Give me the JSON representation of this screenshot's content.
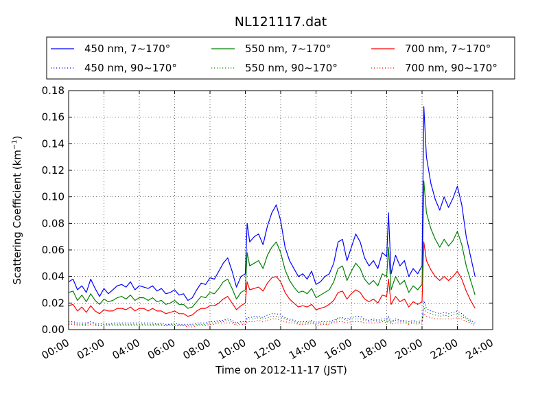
{
  "chart_data": {
    "type": "line",
    "title": "NL121117.dat",
    "xlabel": "Time on 2012-11-17 (JST)",
    "ylabel_main": "Scattering Coefficient (km",
    "ylabel_sup": "−1",
    "ylabel_close": ")",
    "xlim": [
      0,
      24
    ],
    "ylim": [
      0,
      0.18
    ],
    "grid": true,
    "legend_position": "top",
    "x_ticks": [
      0,
      2,
      4,
      6,
      8,
      10,
      12,
      14,
      16,
      18,
      20,
      22,
      24
    ],
    "x_tick_labels": [
      "00:00",
      "02:00",
      "04:00",
      "06:00",
      "08:00",
      "10:00",
      "12:00",
      "14:00",
      "16:00",
      "18:00",
      "20:00",
      "22:00",
      "24:00"
    ],
    "y_ticks": [
      0,
      0.02,
      0.04,
      0.06,
      0.08,
      0.1,
      0.12,
      0.14,
      0.16,
      0.18
    ],
    "y_tick_labels": [
      "0.00",
      "0.02",
      "0.04",
      "0.06",
      "0.08",
      "0.10",
      "0.12",
      "0.14",
      "0.16",
      "0.18"
    ],
    "x": [
      0,
      0.25,
      0.5,
      0.75,
      1,
      1.25,
      1.5,
      1.75,
      2,
      2.25,
      2.5,
      2.75,
      3,
      3.25,
      3.5,
      3.75,
      4,
      4.25,
      4.5,
      4.75,
      5,
      5.25,
      5.5,
      5.75,
      6,
      6.25,
      6.5,
      6.75,
      7,
      7.25,
      7.5,
      7.75,
      8,
      8.25,
      8.5,
      8.75,
      9,
      9.25,
      9.5,
      9.75,
      10,
      10.1,
      10.25,
      10.5,
      10.75,
      11,
      11.25,
      11.5,
      11.75,
      12,
      12.25,
      12.5,
      12.75,
      13,
      13.25,
      13.5,
      13.75,
      14,
      14.25,
      14.5,
      14.75,
      15,
      15.25,
      15.5,
      15.75,
      16,
      16.25,
      16.5,
      16.75,
      17,
      17.25,
      17.5,
      17.75,
      18,
      18.1,
      18.25,
      18.5,
      18.75,
      19,
      19.25,
      19.5,
      19.75,
      20,
      20.1,
      20.25,
      20.5,
      20.75,
      21,
      21.25,
      21.5,
      21.75,
      22,
      22.25,
      22.5,
      22.75,
      23
    ],
    "series": [
      {
        "name": "450 nm, 7∼170°",
        "color": "#0000ff",
        "dash": "solid",
        "values": [
          0.036,
          0.038,
          0.03,
          0.033,
          0.028,
          0.038,
          0.031,
          0.025,
          0.031,
          0.027,
          0.03,
          0.033,
          0.034,
          0.032,
          0.036,
          0.03,
          0.033,
          0.032,
          0.031,
          0.033,
          0.029,
          0.031,
          0.027,
          0.028,
          0.03,
          0.026,
          0.027,
          0.022,
          0.024,
          0.03,
          0.035,
          0.034,
          0.039,
          0.038,
          0.044,
          0.05,
          0.054,
          0.044,
          0.032,
          0.04,
          0.042,
          0.08,
          0.066,
          0.07,
          0.072,
          0.064,
          0.078,
          0.088,
          0.094,
          0.082,
          0.062,
          0.052,
          0.046,
          0.04,
          0.042,
          0.038,
          0.044,
          0.034,
          0.036,
          0.04,
          0.042,
          0.05,
          0.066,
          0.068,
          0.052,
          0.062,
          0.072,
          0.066,
          0.054,
          0.048,
          0.052,
          0.046,
          0.058,
          0.055,
          0.088,
          0.042,
          0.056,
          0.048,
          0.052,
          0.04,
          0.046,
          0.042,
          0.048,
          0.168,
          0.13,
          0.11,
          0.098,
          0.09,
          0.1,
          0.092,
          0.099,
          0.108,
          0.094,
          0.07,
          0.055,
          0.04
        ]
      },
      {
        "name": "450 nm, 90∼170°",
        "color": "#0000ff",
        "dash": "dotted",
        "values": [
          0.006,
          0.006,
          0.005,
          0.005,
          0.005,
          0.006,
          0.005,
          0.004,
          0.005,
          0.004,
          0.005,
          0.005,
          0.005,
          0.005,
          0.005,
          0.005,
          0.005,
          0.005,
          0.005,
          0.005,
          0.004,
          0.005,
          0.004,
          0.004,
          0.005,
          0.004,
          0.004,
          0.004,
          0.004,
          0.005,
          0.005,
          0.005,
          0.006,
          0.006,
          0.007,
          0.007,
          0.008,
          0.007,
          0.005,
          0.006,
          0.006,
          0.009,
          0.009,
          0.01,
          0.01,
          0.009,
          0.011,
          0.012,
          0.012,
          0.011,
          0.009,
          0.008,
          0.007,
          0.006,
          0.006,
          0.006,
          0.007,
          0.005,
          0.006,
          0.006,
          0.006,
          0.007,
          0.009,
          0.009,
          0.008,
          0.009,
          0.01,
          0.01,
          0.008,
          0.007,
          0.008,
          0.007,
          0.008,
          0.008,
          0.01,
          0.006,
          0.008,
          0.007,
          0.007,
          0.006,
          0.007,
          0.006,
          0.007,
          0.022,
          0.016,
          0.014,
          0.013,
          0.012,
          0.013,
          0.012,
          0.013,
          0.014,
          0.012,
          0.009,
          0.007,
          0.005
        ]
      },
      {
        "name": "550 nm, 7∼170°",
        "color": "#008000",
        "dash": "solid",
        "values": [
          0.028,
          0.029,
          0.022,
          0.026,
          0.021,
          0.027,
          0.022,
          0.019,
          0.023,
          0.021,
          0.022,
          0.024,
          0.025,
          0.023,
          0.026,
          0.022,
          0.024,
          0.024,
          0.022,
          0.024,
          0.021,
          0.022,
          0.019,
          0.02,
          0.022,
          0.019,
          0.019,
          0.016,
          0.017,
          0.021,
          0.025,
          0.024,
          0.028,
          0.027,
          0.031,
          0.036,
          0.038,
          0.031,
          0.023,
          0.028,
          0.03,
          0.058,
          0.048,
          0.05,
          0.052,
          0.046,
          0.056,
          0.062,
          0.066,
          0.058,
          0.045,
          0.037,
          0.032,
          0.028,
          0.029,
          0.027,
          0.031,
          0.024,
          0.026,
          0.028,
          0.03,
          0.036,
          0.046,
          0.048,
          0.037,
          0.044,
          0.05,
          0.046,
          0.038,
          0.034,
          0.037,
          0.033,
          0.042,
          0.04,
          0.062,
          0.03,
          0.04,
          0.034,
          0.037,
          0.028,
          0.033,
          0.03,
          0.034,
          0.112,
          0.088,
          0.076,
          0.068,
          0.062,
          0.068,
          0.063,
          0.067,
          0.074,
          0.064,
          0.048,
          0.037,
          0.026
        ]
      },
      {
        "name": "550 nm, 90∼170°",
        "color": "#008000",
        "dash": "dotted",
        "values": [
          0.005,
          0.005,
          0.004,
          0.004,
          0.004,
          0.005,
          0.004,
          0.003,
          0.004,
          0.004,
          0.004,
          0.004,
          0.004,
          0.004,
          0.004,
          0.004,
          0.004,
          0.004,
          0.004,
          0.004,
          0.004,
          0.004,
          0.003,
          0.004,
          0.004,
          0.003,
          0.003,
          0.003,
          0.003,
          0.004,
          0.004,
          0.004,
          0.005,
          0.005,
          0.006,
          0.006,
          0.007,
          0.006,
          0.004,
          0.005,
          0.005,
          0.008,
          0.008,
          0.008,
          0.009,
          0.008,
          0.009,
          0.01,
          0.01,
          0.009,
          0.008,
          0.007,
          0.006,
          0.005,
          0.005,
          0.005,
          0.006,
          0.004,
          0.005,
          0.005,
          0.005,
          0.006,
          0.008,
          0.008,
          0.007,
          0.008,
          0.008,
          0.008,
          0.007,
          0.006,
          0.007,
          0.006,
          0.007,
          0.007,
          0.009,
          0.005,
          0.007,
          0.006,
          0.006,
          0.005,
          0.006,
          0.005,
          0.006,
          0.017,
          0.013,
          0.012,
          0.011,
          0.01,
          0.011,
          0.01,
          0.011,
          0.012,
          0.01,
          0.008,
          0.006,
          0.004
        ]
      },
      {
        "name": "700 nm, 7∼170°",
        "color": "#ff0000",
        "dash": "solid",
        "values": [
          0.018,
          0.019,
          0.014,
          0.017,
          0.013,
          0.018,
          0.014,
          0.012,
          0.015,
          0.014,
          0.014,
          0.016,
          0.016,
          0.015,
          0.017,
          0.014,
          0.016,
          0.016,
          0.014,
          0.016,
          0.014,
          0.014,
          0.012,
          0.013,
          0.014,
          0.012,
          0.012,
          0.01,
          0.011,
          0.014,
          0.016,
          0.016,
          0.018,
          0.018,
          0.02,
          0.023,
          0.025,
          0.02,
          0.015,
          0.018,
          0.02,
          0.036,
          0.03,
          0.031,
          0.032,
          0.029,
          0.035,
          0.039,
          0.04,
          0.036,
          0.028,
          0.023,
          0.02,
          0.017,
          0.018,
          0.017,
          0.019,
          0.015,
          0.016,
          0.017,
          0.019,
          0.022,
          0.028,
          0.029,
          0.023,
          0.027,
          0.03,
          0.028,
          0.023,
          0.021,
          0.023,
          0.02,
          0.026,
          0.025,
          0.038,
          0.019,
          0.025,
          0.021,
          0.023,
          0.017,
          0.021,
          0.019,
          0.021,
          0.066,
          0.052,
          0.045,
          0.04,
          0.037,
          0.04,
          0.037,
          0.04,
          0.044,
          0.038,
          0.029,
          0.022,
          0.016
        ]
      },
      {
        "name": "700 nm, 90∼170°",
        "color": "#ff0000",
        "dash": "dotted",
        "values": [
          0.004,
          0.004,
          0.003,
          0.003,
          0.003,
          0.004,
          0.003,
          0.003,
          0.003,
          0.003,
          0.003,
          0.003,
          0.003,
          0.003,
          0.003,
          0.003,
          0.003,
          0.003,
          0.003,
          0.003,
          0.003,
          0.003,
          0.003,
          0.003,
          0.003,
          0.003,
          0.003,
          0.002,
          0.002,
          0.003,
          0.003,
          0.003,
          0.004,
          0.004,
          0.005,
          0.005,
          0.005,
          0.005,
          0.003,
          0.004,
          0.004,
          0.006,
          0.006,
          0.006,
          0.007,
          0.006,
          0.007,
          0.008,
          0.008,
          0.007,
          0.006,
          0.005,
          0.005,
          0.004,
          0.004,
          0.004,
          0.005,
          0.003,
          0.004,
          0.004,
          0.004,
          0.005,
          0.006,
          0.006,
          0.005,
          0.006,
          0.006,
          0.006,
          0.005,
          0.005,
          0.005,
          0.005,
          0.006,
          0.005,
          0.007,
          0.004,
          0.005,
          0.005,
          0.005,
          0.004,
          0.005,
          0.004,
          0.005,
          0.012,
          0.01,
          0.009,
          0.008,
          0.008,
          0.008,
          0.008,
          0.008,
          0.009,
          0.008,
          0.006,
          0.005,
          0.003
        ]
      }
    ]
  }
}
